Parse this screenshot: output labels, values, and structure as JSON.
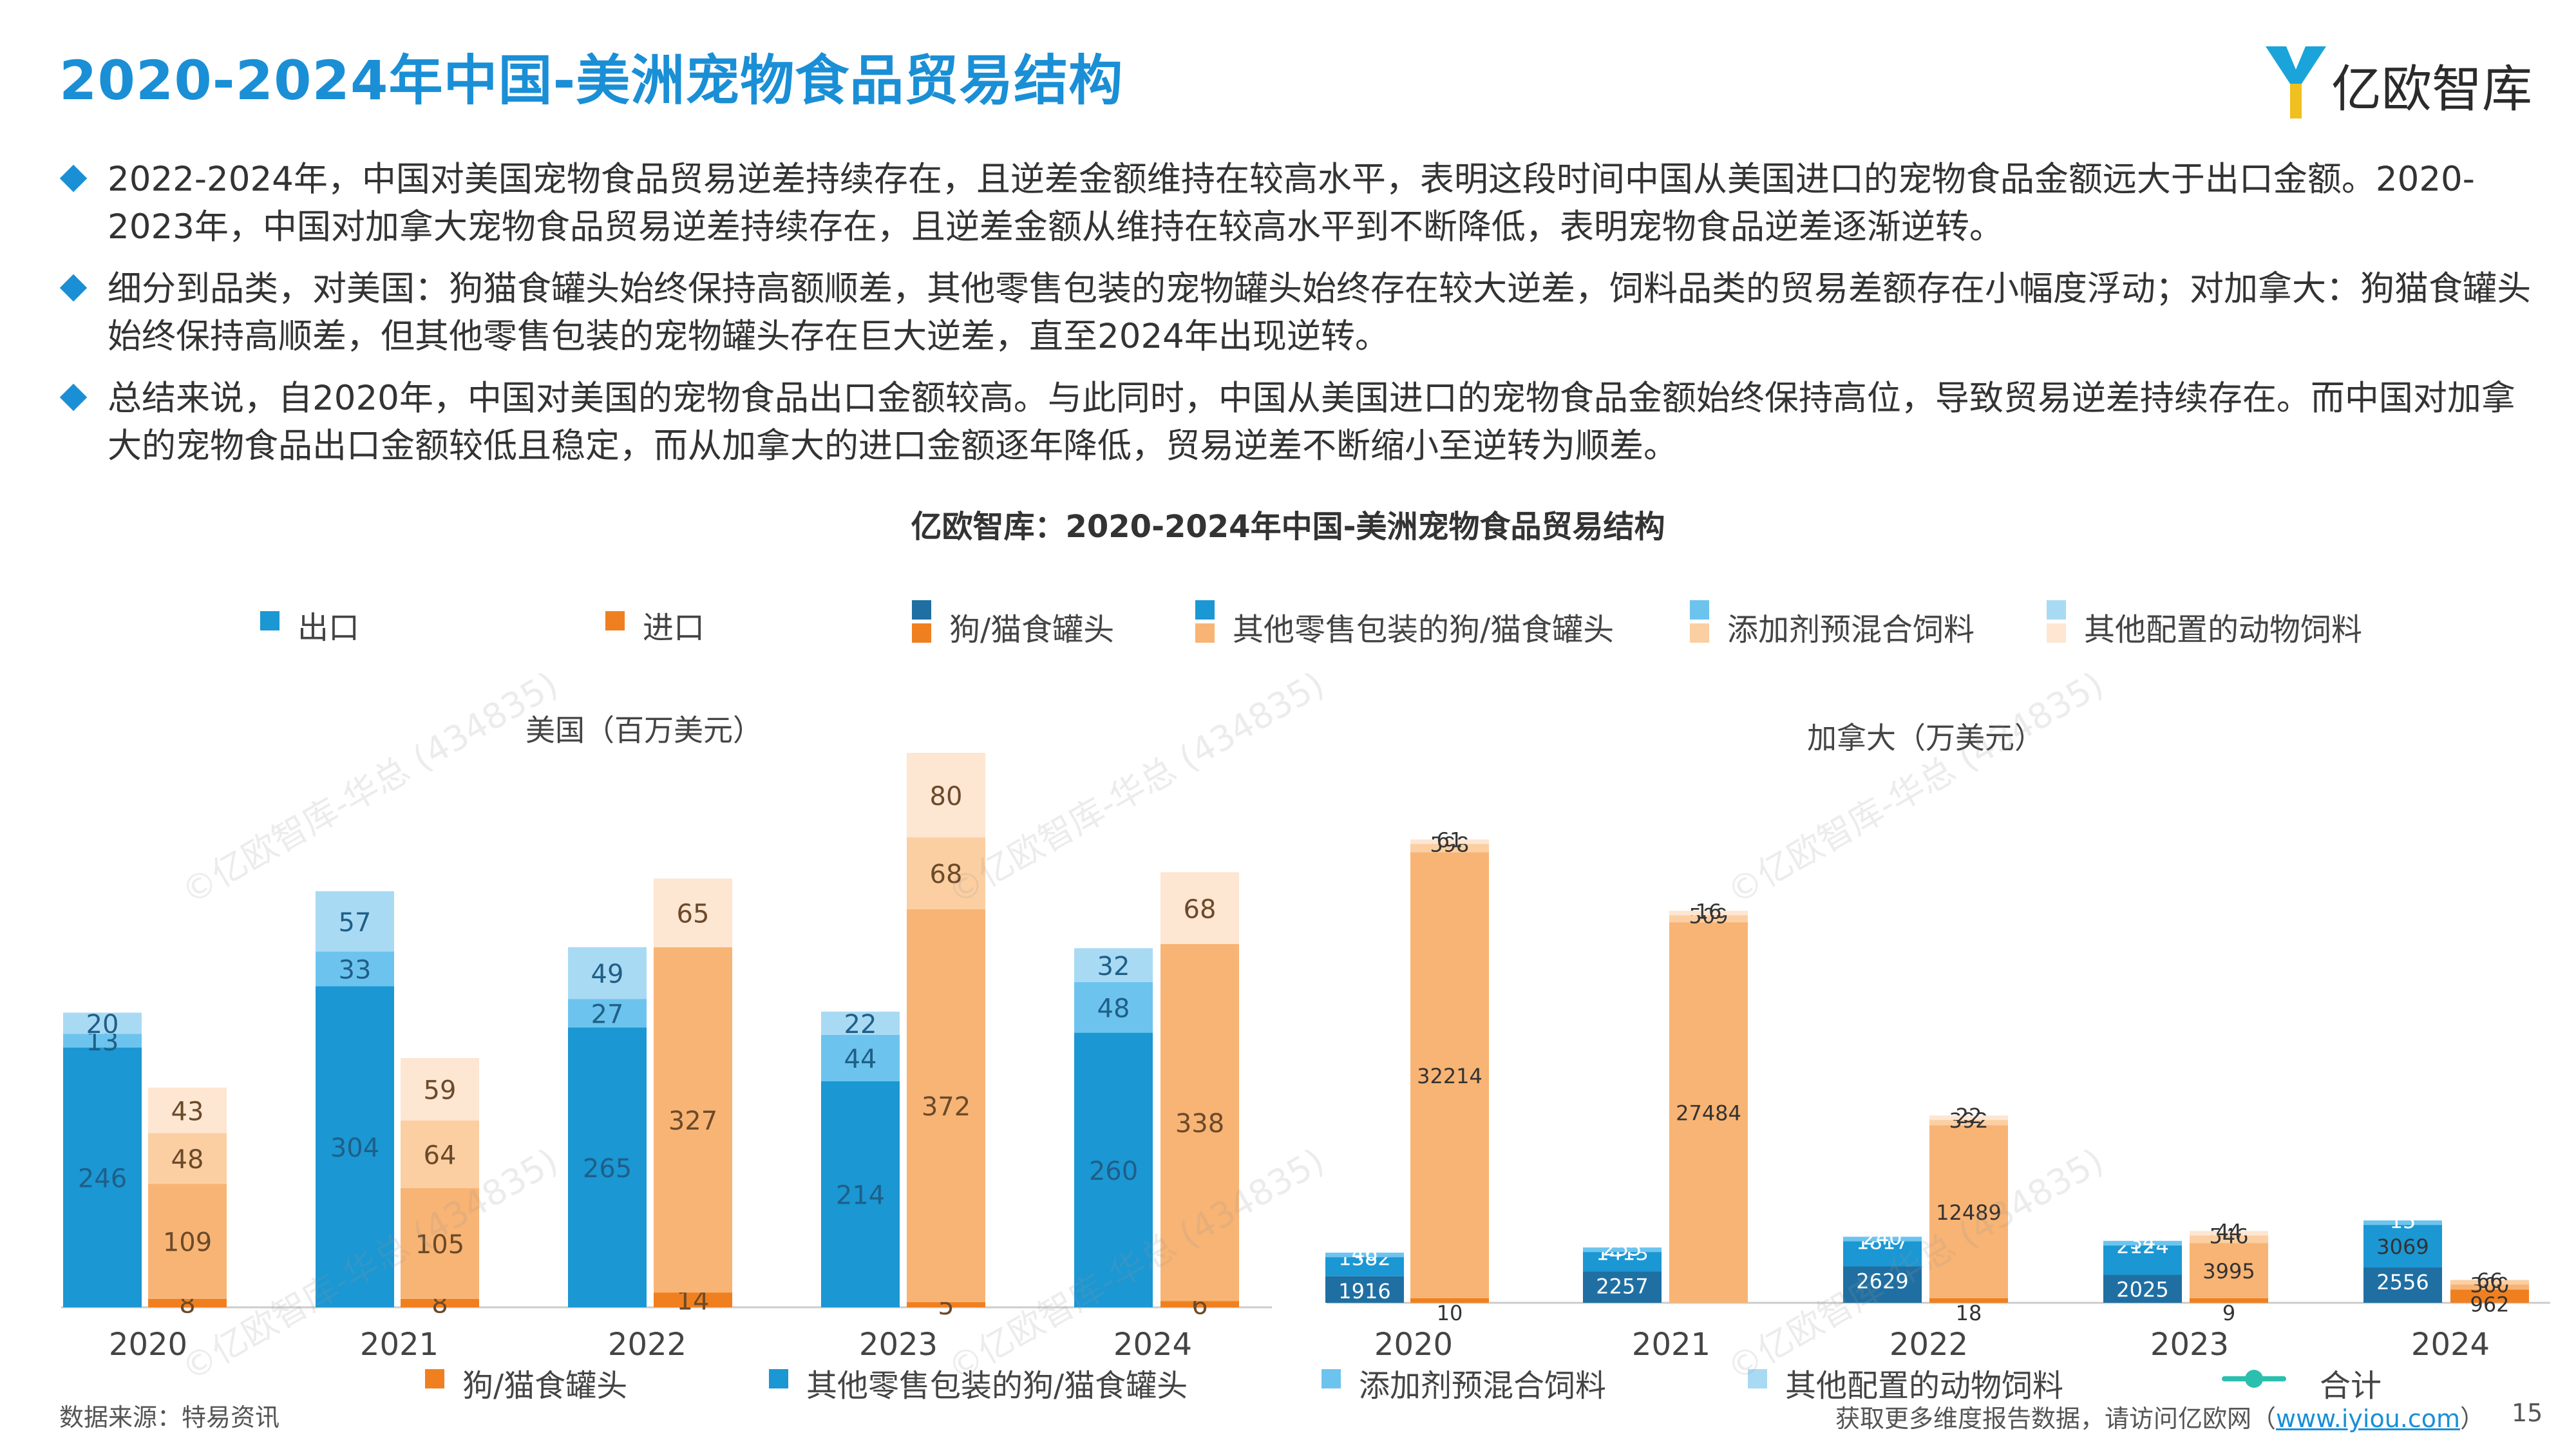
{
  "page": {
    "title": "2020-2024年中国-美洲宠物食品贸易结构",
    "logo_text": "亿欧智库",
    "bullets": [
      "2022-2024年，中国对美国宠物食品贸易逆差持续存在，且逆差金额维持在较高水平，表明这段时间中国从美国进口的宠物食品金额远大于出口金额。2020-2023年，中国对加拿大宠物食品贸易逆差持续存在，且逆差金额从维持在较高水平到不断降低，表明宠物食品逆差逐渐逆转。",
      "细分到品类，对美国：狗猫食罐头始终保持高额顺差，其他零售包装的宠物罐头始终存在较大逆差，饲料品类的贸易差额存在小幅度浮动；对加拿大：狗猫食罐头始终保持高顺差，但其他零售包装的宠物罐头存在巨大逆差，直至2024年出现逆转。",
      "总结来说，自2020年，中国对美国的宠物食品出口金额较高。与此同时，中国从美国进口的宠物食品金额始终保持高位，导致贸易逆差持续存在。而中国对加拿大的宠物食品出口金额较低且稳定，而从加拿大的进口金额逐年降低，贸易逆差不断缩小至逆转为顺差。"
    ],
    "source": "数据来源：特易资讯",
    "footer_prefix": "获取更多维度报告数据，请访问亿欧网（",
    "footer_url": "www.iyiou.com",
    "footer_suffix": "）",
    "page_number": "15",
    "watermark": "©亿欧智库-华总 (434835)"
  },
  "legend_top": {
    "export": "出口",
    "import": "进口",
    "cat1": "狗/猫食罐头",
    "cat2": "其他零售包装的狗/猫食罐头",
    "cat3": "添加剂预混合饲料",
    "cat4": "其他配置的动物饲料"
  },
  "legend_bottom": {
    "cat1": "狗/猫食罐头",
    "cat2": "其他零售包装的狗/猫食罐头",
    "cat3": "添加剂预混合饲料",
    "cat4": "其他配置的动物饲料",
    "total": "合计"
  },
  "colors": {
    "title_blue": "#1a8fd6",
    "export": [
      "#1f6fa3",
      "#1b97d3",
      "#6cc4ee",
      "#a9daf4"
    ],
    "import": [
      "#f0801f",
      "#f8b474",
      "#fbcfa2",
      "#fde6d2"
    ],
    "total_line": "#2bbfae"
  },
  "chart_data": [
    {
      "type": "bar",
      "stacked": true,
      "title": "亿欧智库：2020-2024年中国-美洲宠物食品贸易结构",
      "subtitle": "美国（百万美元）",
      "categories": [
        "2020",
        "2021",
        "2022",
        "2023",
        "2024"
      ],
      "series": [
        {
          "name": "狗/猫食罐头",
          "export": [
            0,
            0,
            0,
            0,
            0
          ],
          "import": [
            8,
            8,
            14,
            5,
            6
          ]
        },
        {
          "name": "其他零售包装的狗/猫食罐头",
          "export": [
            246,
            304,
            265,
            214,
            260
          ],
          "import": [
            109,
            105,
            327,
            372,
            338
          ]
        },
        {
          "name": "添加剂预混合饲料",
          "export": [
            13,
            33,
            27,
            44,
            48
          ],
          "import": [
            48,
            64,
            0,
            68,
            0
          ]
        },
        {
          "name": "其他配置的动物饲料",
          "export": [
            20,
            57,
            49,
            22,
            32
          ],
          "import": [
            43,
            59,
            65,
            80,
            68
          ]
        }
      ],
      "legend": "top"
    },
    {
      "type": "bar",
      "stacked": true,
      "subtitle": "加拿大（万美元）",
      "categories": [
        "2020",
        "2021",
        "2022",
        "2023",
        "2024"
      ],
      "series": [
        {
          "name": "狗/猫食罐头",
          "export": [
            1916,
            2257,
            2629,
            2025,
            2556
          ],
          "import": [
            10,
            0,
            18,
            9,
            962
          ]
        },
        {
          "name": "其他零售包装的狗/猫食罐头",
          "export": [
            1382,
            1413,
            1817,
            2124,
            3069
          ],
          "import": [
            32214,
            27484,
            12489,
            3995,
            360
          ]
        },
        {
          "name": "添加剂预混合饲料",
          "export": [
            46,
            255,
            240,
            34,
            15
          ],
          "import": [
            598,
            509,
            392,
            546,
            66
          ]
        },
        {
          "name": "其他配置的动物饲料",
          "export": [
            0,
            0,
            0,
            0,
            0
          ],
          "import": [
            61,
            16,
            22,
            44,
            0
          ]
        }
      ],
      "legend": "top"
    }
  ]
}
